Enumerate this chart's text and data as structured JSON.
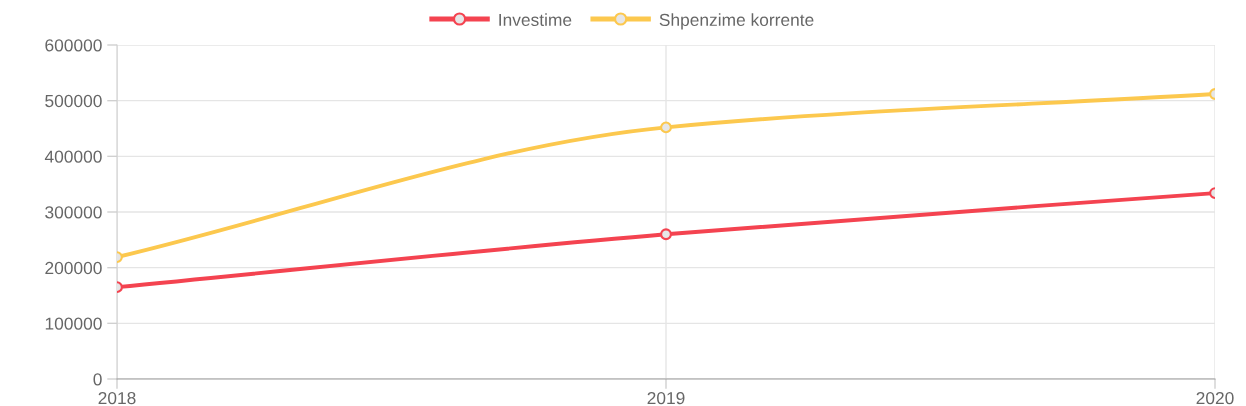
{
  "chart_data": {
    "type": "line",
    "categories": [
      "2018",
      "2019",
      "2020"
    ],
    "series": [
      {
        "name": "Investime",
        "color": "#f44350",
        "values": [
          165000,
          260000,
          334000
        ]
      },
      {
        "name": "Shpenzime korrente",
        "color": "#fcc84e",
        "values": [
          219000,
          452000,
          512000
        ]
      }
    ],
    "ylim": [
      0,
      600000
    ],
    "yticks": [
      0,
      100000,
      200000,
      300000,
      400000,
      500000,
      600000
    ],
    "grid": true,
    "legend": "top",
    "marker": "circle",
    "line_style": "solid"
  }
}
